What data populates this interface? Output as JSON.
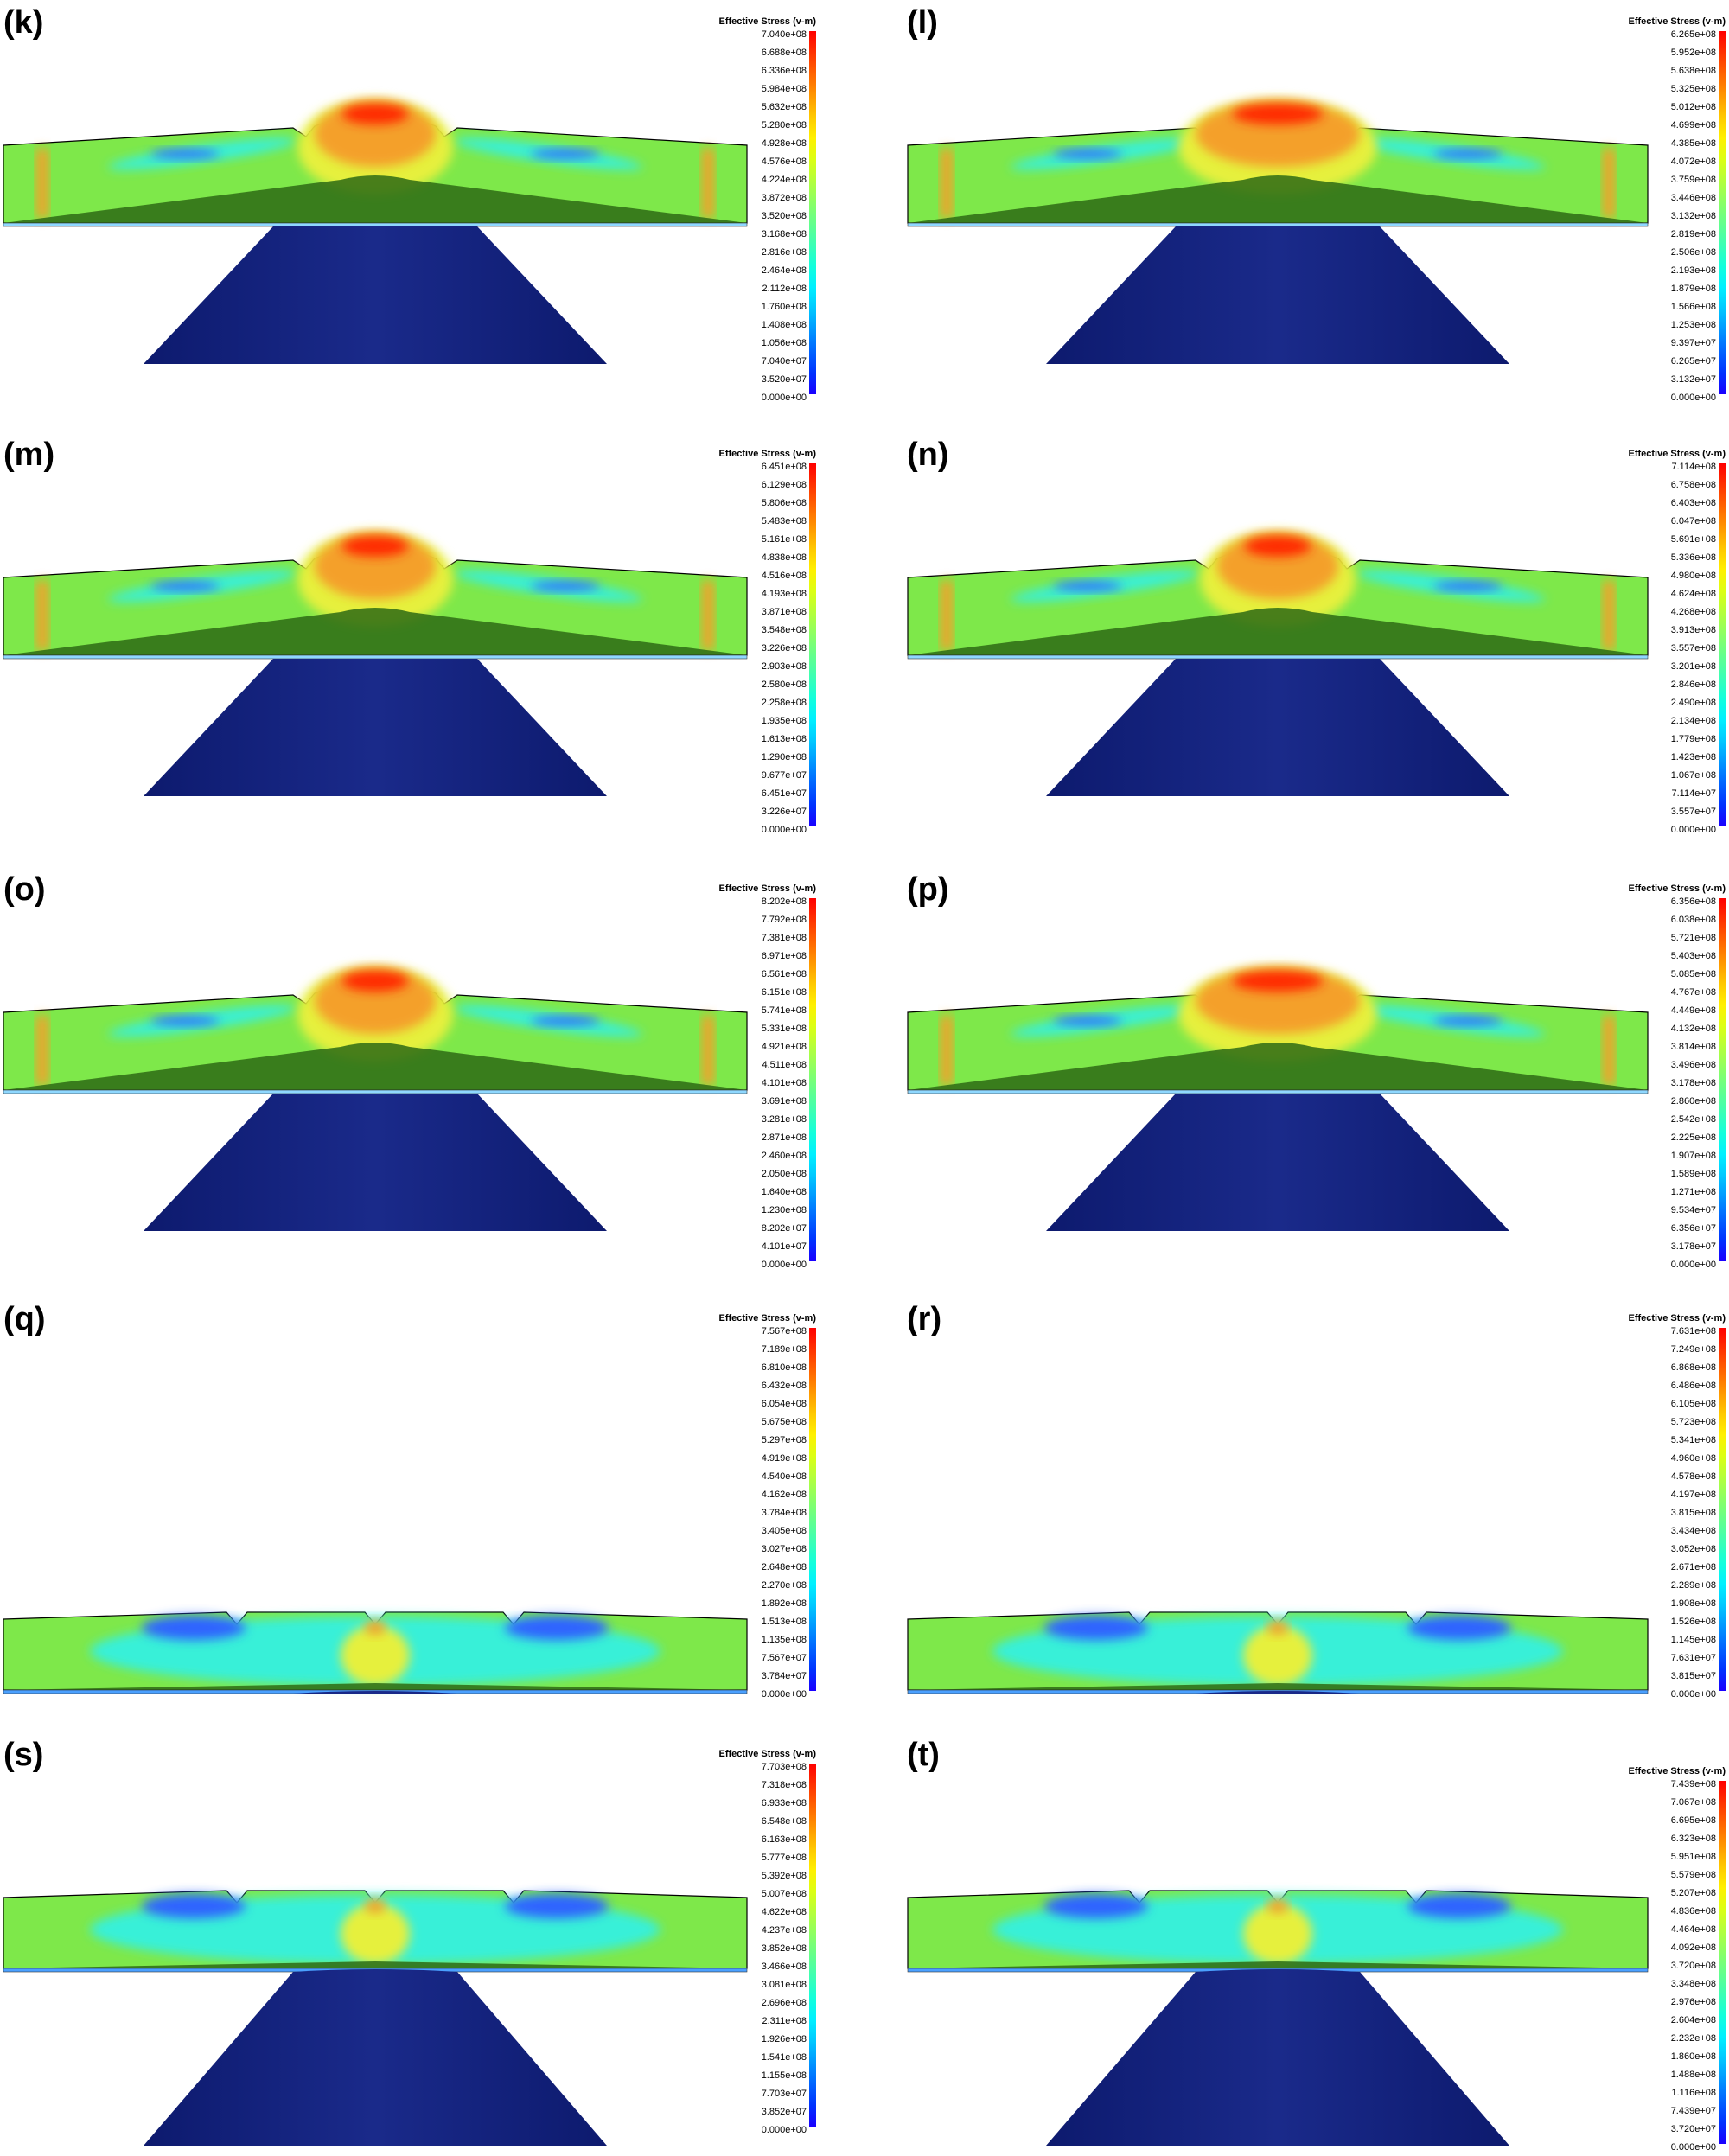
{
  "legend_title": "Effective Stress (v-m)",
  "colormap": [
    "#1a00ff",
    "#0032ff",
    "#0064ff",
    "#0096ff",
    "#00c8ff",
    "#00f0ff",
    "#14ffdc",
    "#3cffb4",
    "#64ff8c",
    "#8cff64",
    "#b4ff3c",
    "#dcff14",
    "#fff000",
    "#ffc800",
    "#ff9600",
    "#ff6400",
    "#ff3200",
    "#ff0000"
  ],
  "mesh_colors": {
    "stress_green": "#7ee84a",
    "stress_cyan": "#38f0d8",
    "stress_blue": "#2f64ff",
    "stress_red": "#ff2a00",
    "stress_orange": "#f4a02a",
    "stress_yellow": "#e6f03c",
    "interface_dark_green": "#2d6a14",
    "punch_navy": "#1a2a8a"
  },
  "panels": [
    {
      "label": "(k)",
      "max": 704000000.0,
      "ticks": [
        "7.040e+08",
        "6.688e+08",
        "6.336e+08",
        "5.984e+08",
        "5.632e+08",
        "5.280e+08",
        "4.928e+08",
        "4.576e+08",
        "4.224e+08",
        "3.872e+08",
        "3.520e+08",
        "3.168e+08",
        "2.816e+08",
        "2.464e+08",
        "2.112e+08",
        "1.760e+08",
        "1.408e+08",
        "1.056e+08",
        "7.040e+07",
        "3.520e+07",
        "0.000e+00"
      ]
    },
    {
      "label": "(l)",
      "max": 626500000.0,
      "ticks": [
        "6.265e+08",
        "5.952e+08",
        "5.638e+08",
        "5.325e+08",
        "5.012e+08",
        "4.699e+08",
        "4.385e+08",
        "4.072e+08",
        "3.759e+08",
        "3.446e+08",
        "3.132e+08",
        "2.819e+08",
        "2.506e+08",
        "2.193e+08",
        "1.879e+08",
        "1.566e+08",
        "1.253e+08",
        "9.397e+07",
        "6.265e+07",
        "3.132e+07",
        "0.000e+00"
      ]
    },
    {
      "label": "(m)",
      "max": 645100000.0,
      "ticks": [
        "6.451e+08",
        "6.129e+08",
        "5.806e+08",
        "5.483e+08",
        "5.161e+08",
        "4.838e+08",
        "4.516e+08",
        "4.193e+08",
        "3.871e+08",
        "3.548e+08",
        "3.226e+08",
        "2.903e+08",
        "2.580e+08",
        "2.258e+08",
        "1.935e+08",
        "1.613e+08",
        "1.290e+08",
        "9.677e+07",
        "6.451e+07",
        "3.226e+07",
        "0.000e+00"
      ]
    },
    {
      "label": "(n)",
      "max": 711400000.0,
      "ticks": [
        "7.114e+08",
        "6.758e+08",
        "6.403e+08",
        "6.047e+08",
        "5.691e+08",
        "5.336e+08",
        "4.980e+08",
        "4.624e+08",
        "4.268e+08",
        "3.913e+08",
        "3.557e+08",
        "3.201e+08",
        "2.846e+08",
        "2.490e+08",
        "2.134e+08",
        "1.779e+08",
        "1.423e+08",
        "1.067e+08",
        "7.114e+07",
        "3.557e+07",
        "0.000e+00"
      ]
    },
    {
      "label": "(o)",
      "max": 820200000.0,
      "ticks": [
        "8.202e+08",
        "7.792e+08",
        "7.381e+08",
        "6.971e+08",
        "6.561e+08",
        "6.151e+08",
        "5.741e+08",
        "5.331e+08",
        "4.921e+08",
        "4.511e+08",
        "4.101e+08",
        "3.691e+08",
        "3.281e+08",
        "2.871e+08",
        "2.460e+08",
        "2.050e+08",
        "1.640e+08",
        "1.230e+08",
        "8.202e+07",
        "4.101e+07",
        "0.000e+00"
      ]
    },
    {
      "label": "(p)",
      "max": 635600000.0,
      "ticks": [
        "6.356e+08",
        "6.038e+08",
        "5.721e+08",
        "5.403e+08",
        "5.085e+08",
        "4.767e+08",
        "4.449e+08",
        "4.132e+08",
        "3.814e+08",
        "3.496e+08",
        "3.178e+08",
        "2.860e+08",
        "2.542e+08",
        "2.225e+08",
        "1.907e+08",
        "1.589e+08",
        "1.271e+08",
        "9.534e+07",
        "6.356e+07",
        "3.178e+07",
        "0.000e+00"
      ]
    },
    {
      "label": "(q)",
      "max": 756700000.0,
      "ticks": [
        "7.567e+08",
        "7.189e+08",
        "6.810e+08",
        "6.432e+08",
        "6.054e+08",
        "5.675e+08",
        "5.297e+08",
        "4.919e+08",
        "4.540e+08",
        "4.162e+08",
        "3.784e+08",
        "3.405e+08",
        "3.027e+08",
        "2.648e+08",
        "2.270e+08",
        "1.892e+08",
        "1.513e+08",
        "1.135e+08",
        "7.567e+07",
        "3.784e+07",
        "0.000e+00"
      ]
    },
    {
      "label": "(r)",
      "max": 763100000.0,
      "ticks": [
        "7.631e+08",
        "7.249e+08",
        "6.868e+08",
        "6.486e+08",
        "6.105e+08",
        "5.723e+08",
        "5.341e+08",
        "4.960e+08",
        "4.578e+08",
        "4.197e+08",
        "3.815e+08",
        "3.434e+08",
        "3.052e+08",
        "2.671e+08",
        "2.289e+08",
        "1.908e+08",
        "1.526e+08",
        "1.145e+08",
        "7.631e+07",
        "3.815e+07",
        "0.000e+00"
      ]
    },
    {
      "label": "(s)",
      "max": 770300000.0,
      "ticks": [
        "7.703e+08",
        "7.318e+08",
        "6.933e+08",
        "6.548e+08",
        "6.163e+08",
        "5.777e+08",
        "5.392e+08",
        "5.007e+08",
        "4.622e+08",
        "4.237e+08",
        "3.852e+08",
        "3.466e+08",
        "3.081e+08",
        "2.696e+08",
        "2.311e+08",
        "1.926e+08",
        "1.541e+08",
        "1.155e+08",
        "7.703e+07",
        "3.852e+07",
        "0.000e+00"
      ]
    },
    {
      "label": "(t)",
      "max": 743900000.0,
      "ticks": [
        "7.439e+08",
        "7.067e+08",
        "6.695e+08",
        "6.323e+08",
        "5.951e+08",
        "5.579e+08",
        "5.207e+08",
        "4.836e+08",
        "4.464e+08",
        "4.092e+08",
        "3.720e+08",
        "3.348e+08",
        "2.976e+08",
        "2.604e+08",
        "2.232e+08",
        "1.860e+08",
        "1.488e+08",
        "1.116e+08",
        "7.439e+07",
        "3.720e+07",
        "0.000e+00"
      ]
    }
  ]
}
